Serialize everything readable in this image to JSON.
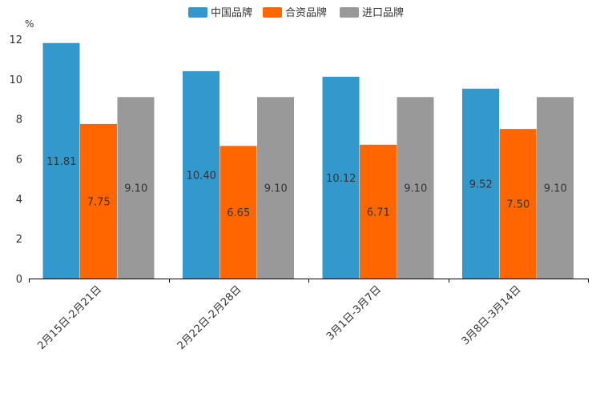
{
  "chart_data": {
    "type": "bar",
    "unit_label": "%",
    "categories": [
      "2月15日-2月21日",
      "2月22日-2月28日",
      "3月1日-3月7日",
      "3月8日-3月14日"
    ],
    "series": [
      {
        "name": "中国品牌",
        "color": "#3399cc",
        "values": [
          11.81,
          10.4,
          10.12,
          9.52
        ],
        "labels": [
          "11.81",
          "10.40",
          "10.12",
          "9.52"
        ]
      },
      {
        "name": "合资品牌",
        "color": "#ff6600",
        "values": [
          7.75,
          6.65,
          6.71,
          7.5
        ],
        "labels": [
          "7.75",
          "6.65",
          "6.71",
          "7.50"
        ]
      },
      {
        "name": "进口品牌",
        "color": "#999999",
        "values": [
          9.1,
          9.1,
          9.1,
          9.1
        ],
        "labels": [
          "9.10",
          "9.10",
          "9.10",
          "9.10"
        ]
      }
    ],
    "ylim": [
      0,
      12
    ],
    "yticks": [
      "0",
      "2",
      "4",
      "6",
      "8",
      "10",
      "12"
    ],
    "legend_position": "top-center",
    "grid": false
  }
}
